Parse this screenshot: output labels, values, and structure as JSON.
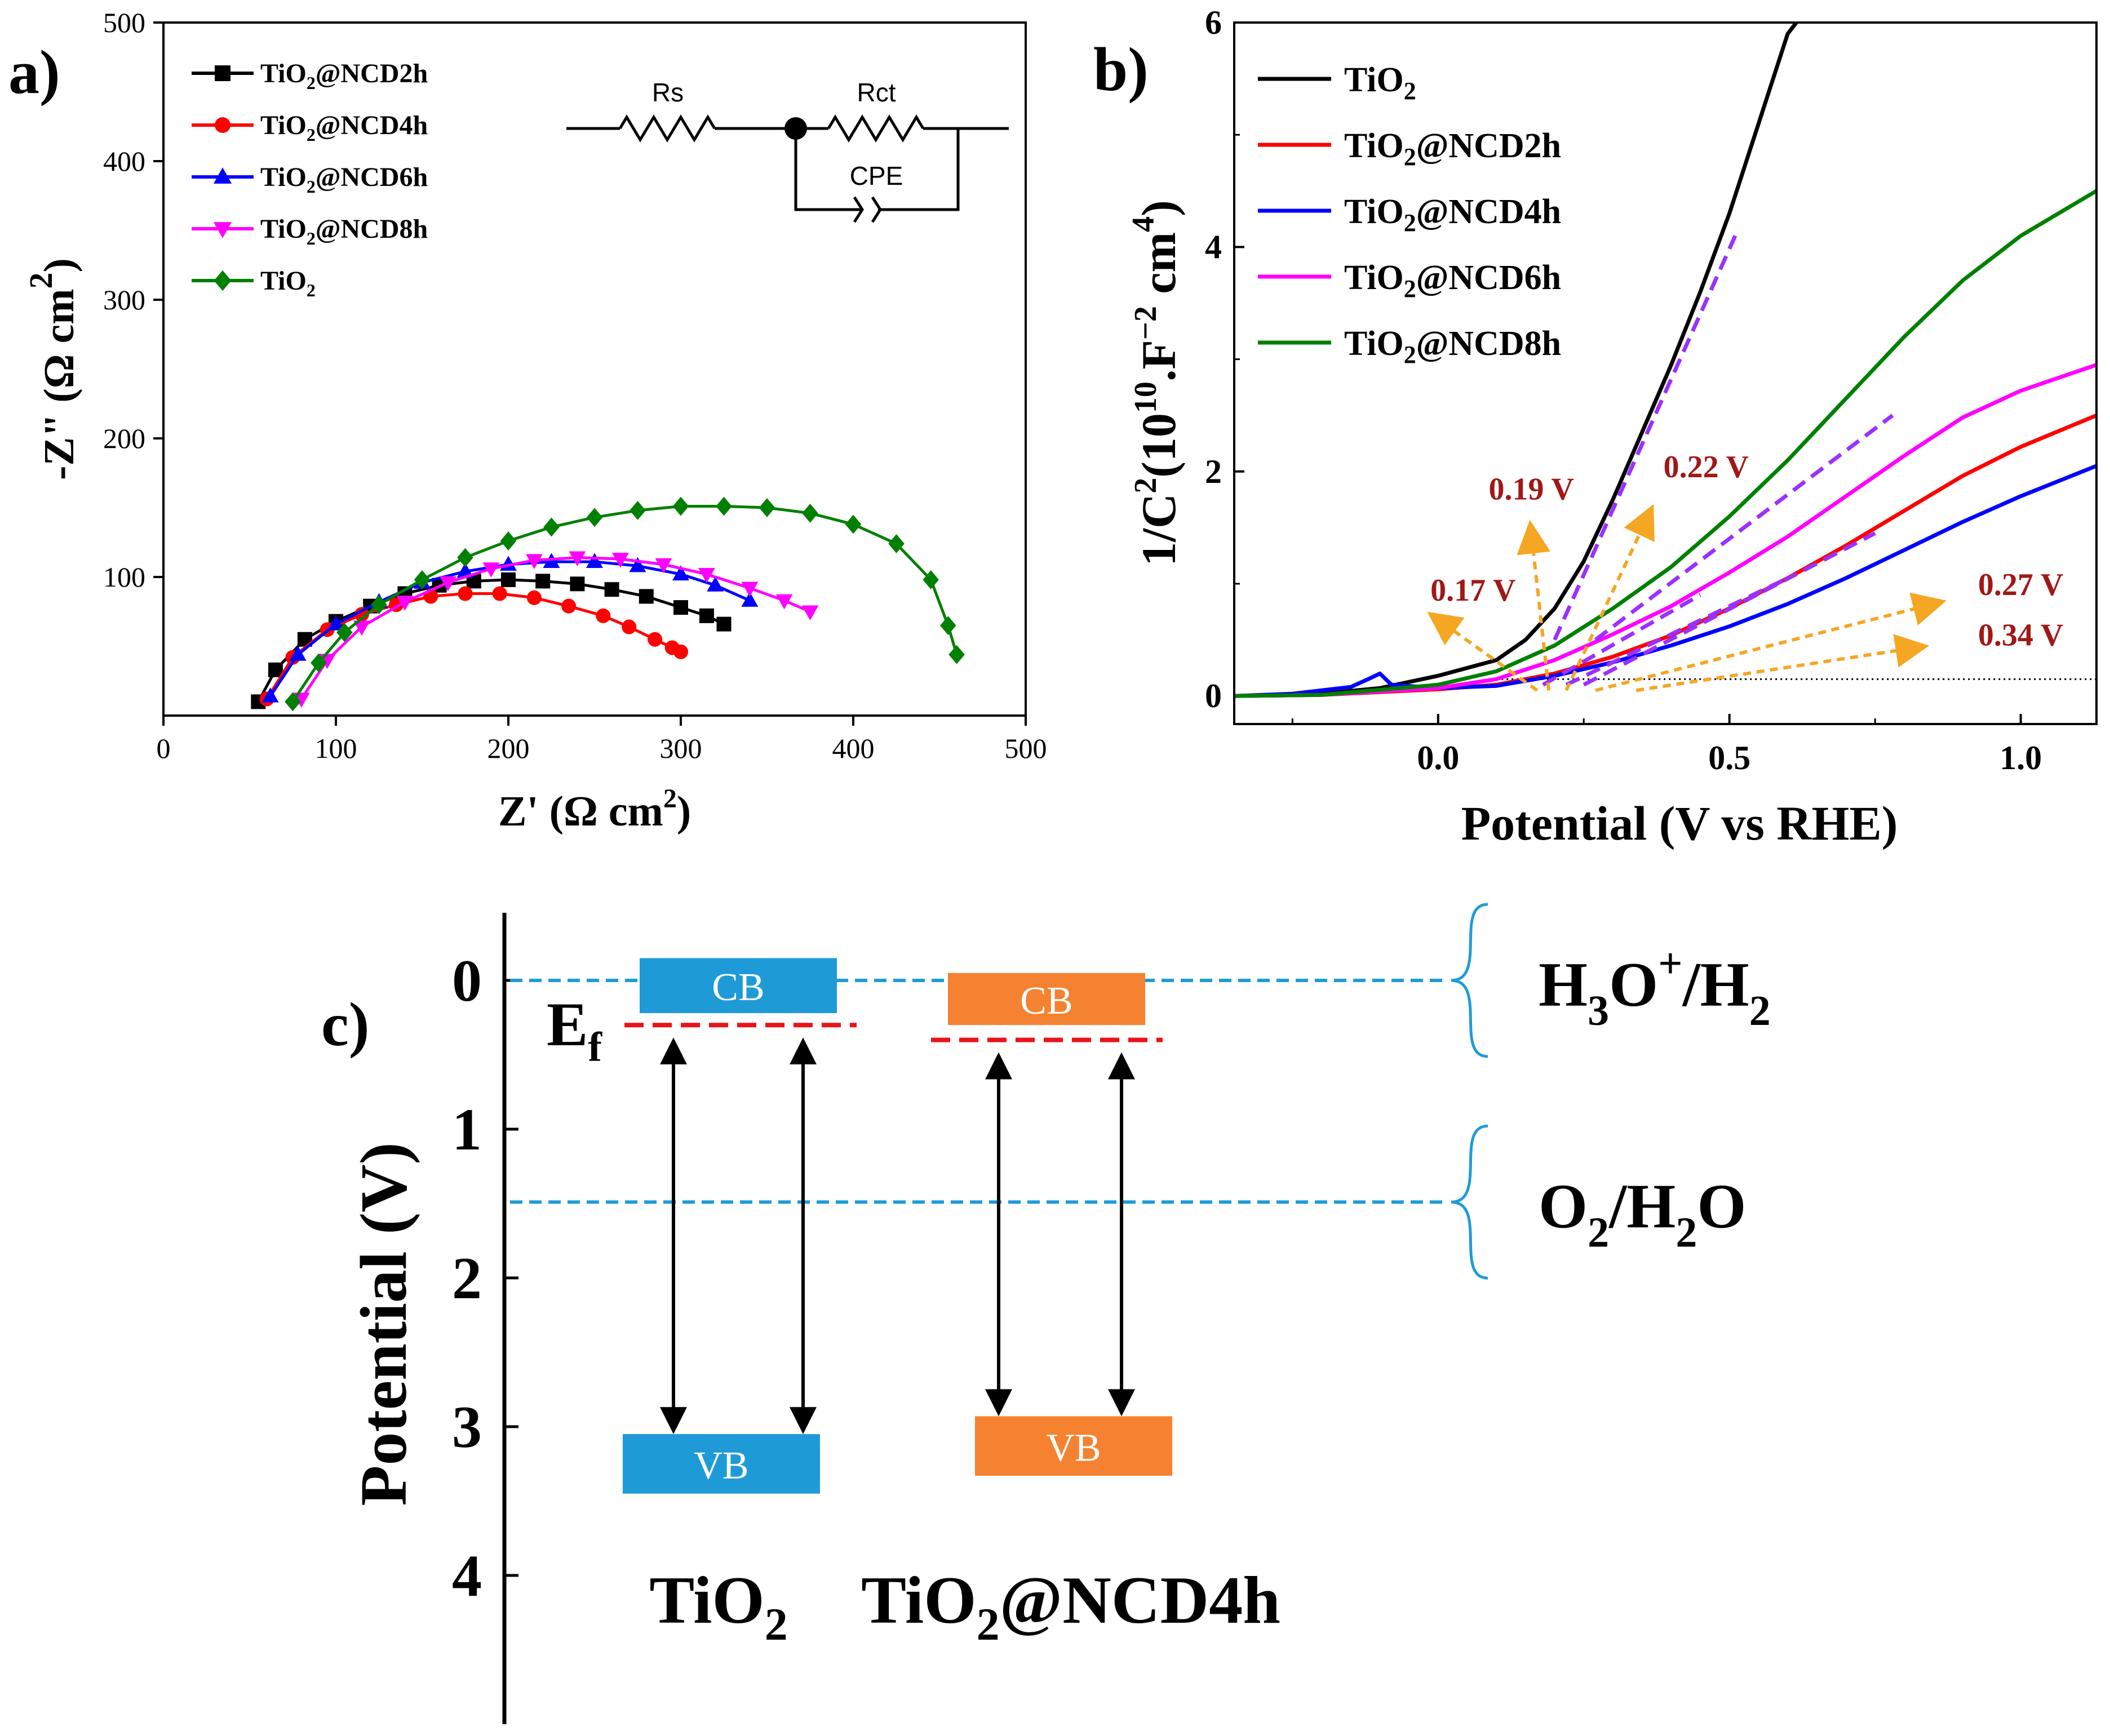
{
  "panel_labels": {
    "a": "a)",
    "b": "b)",
    "c": "c)"
  },
  "chart_data": [
    {
      "type": "scatter",
      "title": "",
      "xlabel_main": "Z' (",
      "xlabel_unit": "Ω cm",
      "xlabel_sup": "2",
      "xlabel_end": ")",
      "ylabel_main": "-Z\" (",
      "ylabel_unit": "Ω cm",
      "ylabel_sup": "2",
      "ylabel_end": ")",
      "xlim": [
        0,
        500
      ],
      "ylim": [
        0,
        500
      ],
      "x_ticks": [
        "0",
        "100",
        "200",
        "300",
        "400",
        "500"
      ],
      "y_ticks": [
        "100",
        "200",
        "300",
        "400",
        "500"
      ],
      "legend_position": "top-left",
      "circuit": {
        "rs": "Rs",
        "rct": "Rct",
        "cpe": "CPE"
      },
      "series": [
        {
          "name": "TiO₂@NCD2h",
          "base": "TiO",
          "sub": "2",
          "tail": "@NCD2h",
          "color": "#000000",
          "marker": "square",
          "points": [
            [
              55,
              10
            ],
            [
              65,
              33
            ],
            [
              82,
              55
            ],
            [
              100,
              68
            ],
            [
              120,
              79
            ],
            [
              140,
              88
            ],
            [
              160,
              94
            ],
            [
              180,
              97
            ],
            [
              200,
              98
            ],
            [
              220,
              97
            ],
            [
              240,
              95
            ],
            [
              260,
              91
            ],
            [
              280,
              86
            ],
            [
              300,
              78
            ],
            [
              315,
              72
            ],
            [
              325,
              66
            ]
          ]
        },
        {
          "name": "TiO₂@NCD4h",
          "base": "TiO",
          "sub": "2",
          "tail": "@NCD4h",
          "color": "#ff0000",
          "marker": "circle",
          "points": [
            [
              60,
              12
            ],
            [
              75,
              42
            ],
            [
              95,
              62
            ],
            [
              115,
              73
            ],
            [
              135,
              80
            ],
            [
              155,
              86
            ],
            [
              175,
              88
            ],
            [
              195,
              88
            ],
            [
              215,
              85
            ],
            [
              235,
              79
            ],
            [
              255,
              72
            ],
            [
              270,
              64
            ],
            [
              285,
              55
            ],
            [
              295,
              49
            ],
            [
              300,
              46
            ]
          ]
        },
        {
          "name": "TiO₂@NCD6h",
          "base": "TiO",
          "sub": "2",
          "tail": "@NCD6h",
          "color": "#0000ff",
          "marker": "triangle-up",
          "points": [
            [
              62,
              14
            ],
            [
              78,
              44
            ],
            [
              100,
              66
            ],
            [
              125,
              82
            ],
            [
              150,
              96
            ],
            [
              175,
              104
            ],
            [
              200,
              109
            ],
            [
              225,
              111
            ],
            [
              250,
              111
            ],
            [
              275,
              108
            ],
            [
              300,
              102
            ],
            [
              320,
              94
            ],
            [
              340,
              83
            ]
          ]
        },
        {
          "name": "TiO₂@NCD8h",
          "base": "TiO",
          "sub": "2",
          "tail": "@NCD8h",
          "color": "#ff00ff",
          "marker": "triangle-down",
          "points": [
            [
              80,
              12
            ],
            [
              95,
              40
            ],
            [
              115,
              64
            ],
            [
              140,
              82
            ],
            [
              165,
              96
            ],
            [
              190,
              106
            ],
            [
              215,
              112
            ],
            [
              240,
              114
            ],
            [
              265,
              113
            ],
            [
              290,
              109
            ],
            [
              315,
              102
            ],
            [
              340,
              92
            ],
            [
              360,
              83
            ],
            [
              375,
              75
            ]
          ]
        },
        {
          "name": "TiO₂",
          "base": "TiO",
          "sub": "2",
          "tail": "",
          "color": "#008000",
          "marker": "diamond",
          "points": [
            [
              75,
              10
            ],
            [
              90,
              38
            ],
            [
              105,
              60
            ],
            [
              125,
              80
            ],
            [
              150,
              98
            ],
            [
              175,
              114
            ],
            [
              200,
              126
            ],
            [
              225,
              136
            ],
            [
              250,
              143
            ],
            [
              275,
              148
            ],
            [
              300,
              151
            ],
            [
              325,
              151
            ],
            [
              350,
              150
            ],
            [
              375,
              146
            ],
            [
              400,
              138
            ],
            [
              425,
              124
            ],
            [
              445,
              98
            ],
            [
              455,
              65
            ],
            [
              460,
              44
            ]
          ]
        }
      ]
    },
    {
      "type": "line",
      "title": "",
      "xlabel": "Potential (V vs RHE)",
      "ylabel_main": "1/C",
      "ylabel_sup1": "2",
      "ylabel_mid1": "(10",
      "ylabel_sup2": "10",
      "ylabel_mid2": ".F",
      "ylabel_sup3": "−2",
      "ylabel_mid3": " cm",
      "ylabel_sup4": "4",
      "ylabel_end": ")",
      "xlim": [
        -0.35,
        1.13
      ],
      "ylim": [
        -0.25,
        6
      ],
      "x_ticks": [
        {
          "value": 0,
          "label": "0.0"
        },
        {
          "value": 0.5,
          "label": "0.5"
        },
        {
          "value": 1.0,
          "label": "1.0"
        }
      ],
      "y_ticks": [
        {
          "value": 0,
          "label": "0"
        },
        {
          "value": 2,
          "label": "2"
        },
        {
          "value": 4,
          "label": "4"
        },
        {
          "value": 6,
          "label": "6"
        }
      ],
      "legend_position": "top-left",
      "series": [
        {
          "name": "TiO₂",
          "base": "TiO",
          "sub": "2",
          "tail": "",
          "color": "#000000",
          "x": [
            -0.35,
            -0.2,
            -0.1,
            0,
            0.1,
            0.15,
            0.2,
            0.25,
            0.3,
            0.35,
            0.4,
            0.45,
            0.5,
            0.55,
            0.6,
            0.63
          ],
          "y": [
            0,
            0.02,
            0.07,
            0.18,
            0.32,
            0.5,
            0.78,
            1.2,
            1.75,
            2.35,
            2.95,
            3.6,
            4.3,
            5.1,
            5.9,
            6.1
          ]
        },
        {
          "name": "TiO₂@NCD2h",
          "base": "TiO",
          "sub": "2",
          "tail": "@NCD2h",
          "color": "#ff0000",
          "x": [
            -0.35,
            -0.2,
            0,
            0.1,
            0.2,
            0.3,
            0.4,
            0.5,
            0.6,
            0.7,
            0.8,
            0.9,
            1.0,
            1.13
          ],
          "y": [
            0,
            0.01,
            0.06,
            0.1,
            0.2,
            0.35,
            0.54,
            0.78,
            1.05,
            1.34,
            1.65,
            1.96,
            2.22,
            2.5
          ]
        },
        {
          "name": "TiO₂@NCD4h",
          "base": "TiO",
          "sub": "2",
          "tail": "@NCD4h",
          "color": "#0000ff",
          "x": [
            -0.35,
            -0.25,
            -0.15,
            -0.12,
            -0.1,
            -0.08,
            0,
            0.1,
            0.2,
            0.3,
            0.4,
            0.5,
            0.6,
            0.7,
            0.8,
            0.9,
            1.0,
            1.13
          ],
          "y": [
            0,
            0.02,
            0.08,
            0.15,
            0.2,
            0.1,
            0.07,
            0.09,
            0.18,
            0.3,
            0.45,
            0.62,
            0.82,
            1.05,
            1.3,
            1.55,
            1.78,
            2.05
          ]
        },
        {
          "name": "TiO₂@NCD6h",
          "base": "TiO",
          "sub": "2",
          "tail": "@NCD6h",
          "color": "#ff00ff",
          "x": [
            -0.35,
            -0.2,
            0,
            0.1,
            0.2,
            0.3,
            0.4,
            0.5,
            0.6,
            0.7,
            0.8,
            0.9,
            1.0,
            1.13
          ],
          "y": [
            0,
            0.01,
            0.07,
            0.15,
            0.32,
            0.55,
            0.8,
            1.1,
            1.42,
            1.78,
            2.14,
            2.48,
            2.72,
            2.95
          ]
        },
        {
          "name": "TiO₂@NCD8h",
          "base": "TiO",
          "sub": "2",
          "tail": "@NCD8h",
          "color": "#008000",
          "x": [
            -0.35,
            -0.2,
            0,
            0.1,
            0.2,
            0.3,
            0.4,
            0.5,
            0.6,
            0.7,
            0.8,
            0.9,
            1.0,
            1.13
          ],
          "y": [
            0,
            0.01,
            0.1,
            0.22,
            0.45,
            0.78,
            1.15,
            1.6,
            2.1,
            2.65,
            3.2,
            3.7,
            4.1,
            4.5
          ]
        }
      ],
      "fit_lines": [
        {
          "x": [
            0.2,
            0.51
          ],
          "y": [
            0.5,
            4.1
          ]
        },
        {
          "x": [
            0.27,
            0.78
          ],
          "y": [
            0.5,
            2.5
          ]
        },
        {
          "x": [
            0.18,
            0.45
          ],
          "y": [
            0.1,
            0.9
          ]
        },
        {
          "x": [
            0.22,
            0.6
          ],
          "y": [
            0.1,
            1.05
          ]
        },
        {
          "x": [
            0.25,
            0.75
          ],
          "y": [
            0.1,
            1.45
          ]
        }
      ],
      "intercepts": [
        {
          "label": "0.17 V",
          "x": 0.17,
          "label_x": 0.06,
          "label_y": 0.85,
          "arrow_to": [
            0.0,
            0.68
          ]
        },
        {
          "label": "0.19 V",
          "x": 0.19,
          "label_x": 0.16,
          "label_y": 1.75,
          "arrow_to": [
            0.16,
            1.45
          ]
        },
        {
          "label": "0.22 V",
          "x": 0.22,
          "label_x": 0.46,
          "label_y": 1.95,
          "arrow_to": [
            0.36,
            1.6
          ]
        },
        {
          "label": "0.27 V",
          "x": 0.27,
          "label_x": 1.0,
          "label_y": 0.9,
          "arrow_to": [
            0.85,
            0.82
          ]
        },
        {
          "label": "0.34 V",
          "x": 0.34,
          "label_x": 1.0,
          "label_y": 0.45,
          "arrow_to": [
            0.82,
            0.43
          ]
        }
      ]
    }
  ],
  "diagram": {
    "y_axis_label": "Potential (V)",
    "y_ticks": [
      "0",
      "1",
      "2",
      "3",
      "4"
    ],
    "ef_label": "E",
    "ef_sub": "f",
    "materials": [
      {
        "name": "TiO₂",
        "base": "TiO",
        "sub": "2",
        "tail": "",
        "cb": "CB",
        "vb": "VB",
        "color": "#1e9bd7",
        "cb_top": -0.15,
        "cb_bottom": 0.22,
        "ef": 0.3,
        "vb_top": 3.05,
        "vb_bottom": 3.45
      },
      {
        "name": "TiO₂@NCD4h",
        "base": "TiO",
        "sub": "2",
        "tail": "@NCD4h",
        "cb": "CB",
        "vb": "VB",
        "color": "#f58230",
        "cb_top": -0.05,
        "cb_bottom": 0.3,
        "ef": 0.4,
        "vb_top": 2.93,
        "vb_bottom": 3.33
      }
    ],
    "redox": [
      {
        "level": 0,
        "main": "H",
        "sub1": "3",
        "mid": "O",
        "sup": "+",
        "tail": "/H",
        "sub2": "2"
      },
      {
        "level": 1.49,
        "main": "O",
        "sub1": "2",
        "mid": "/H",
        "sub2": "2",
        "tail": "O"
      }
    ]
  }
}
